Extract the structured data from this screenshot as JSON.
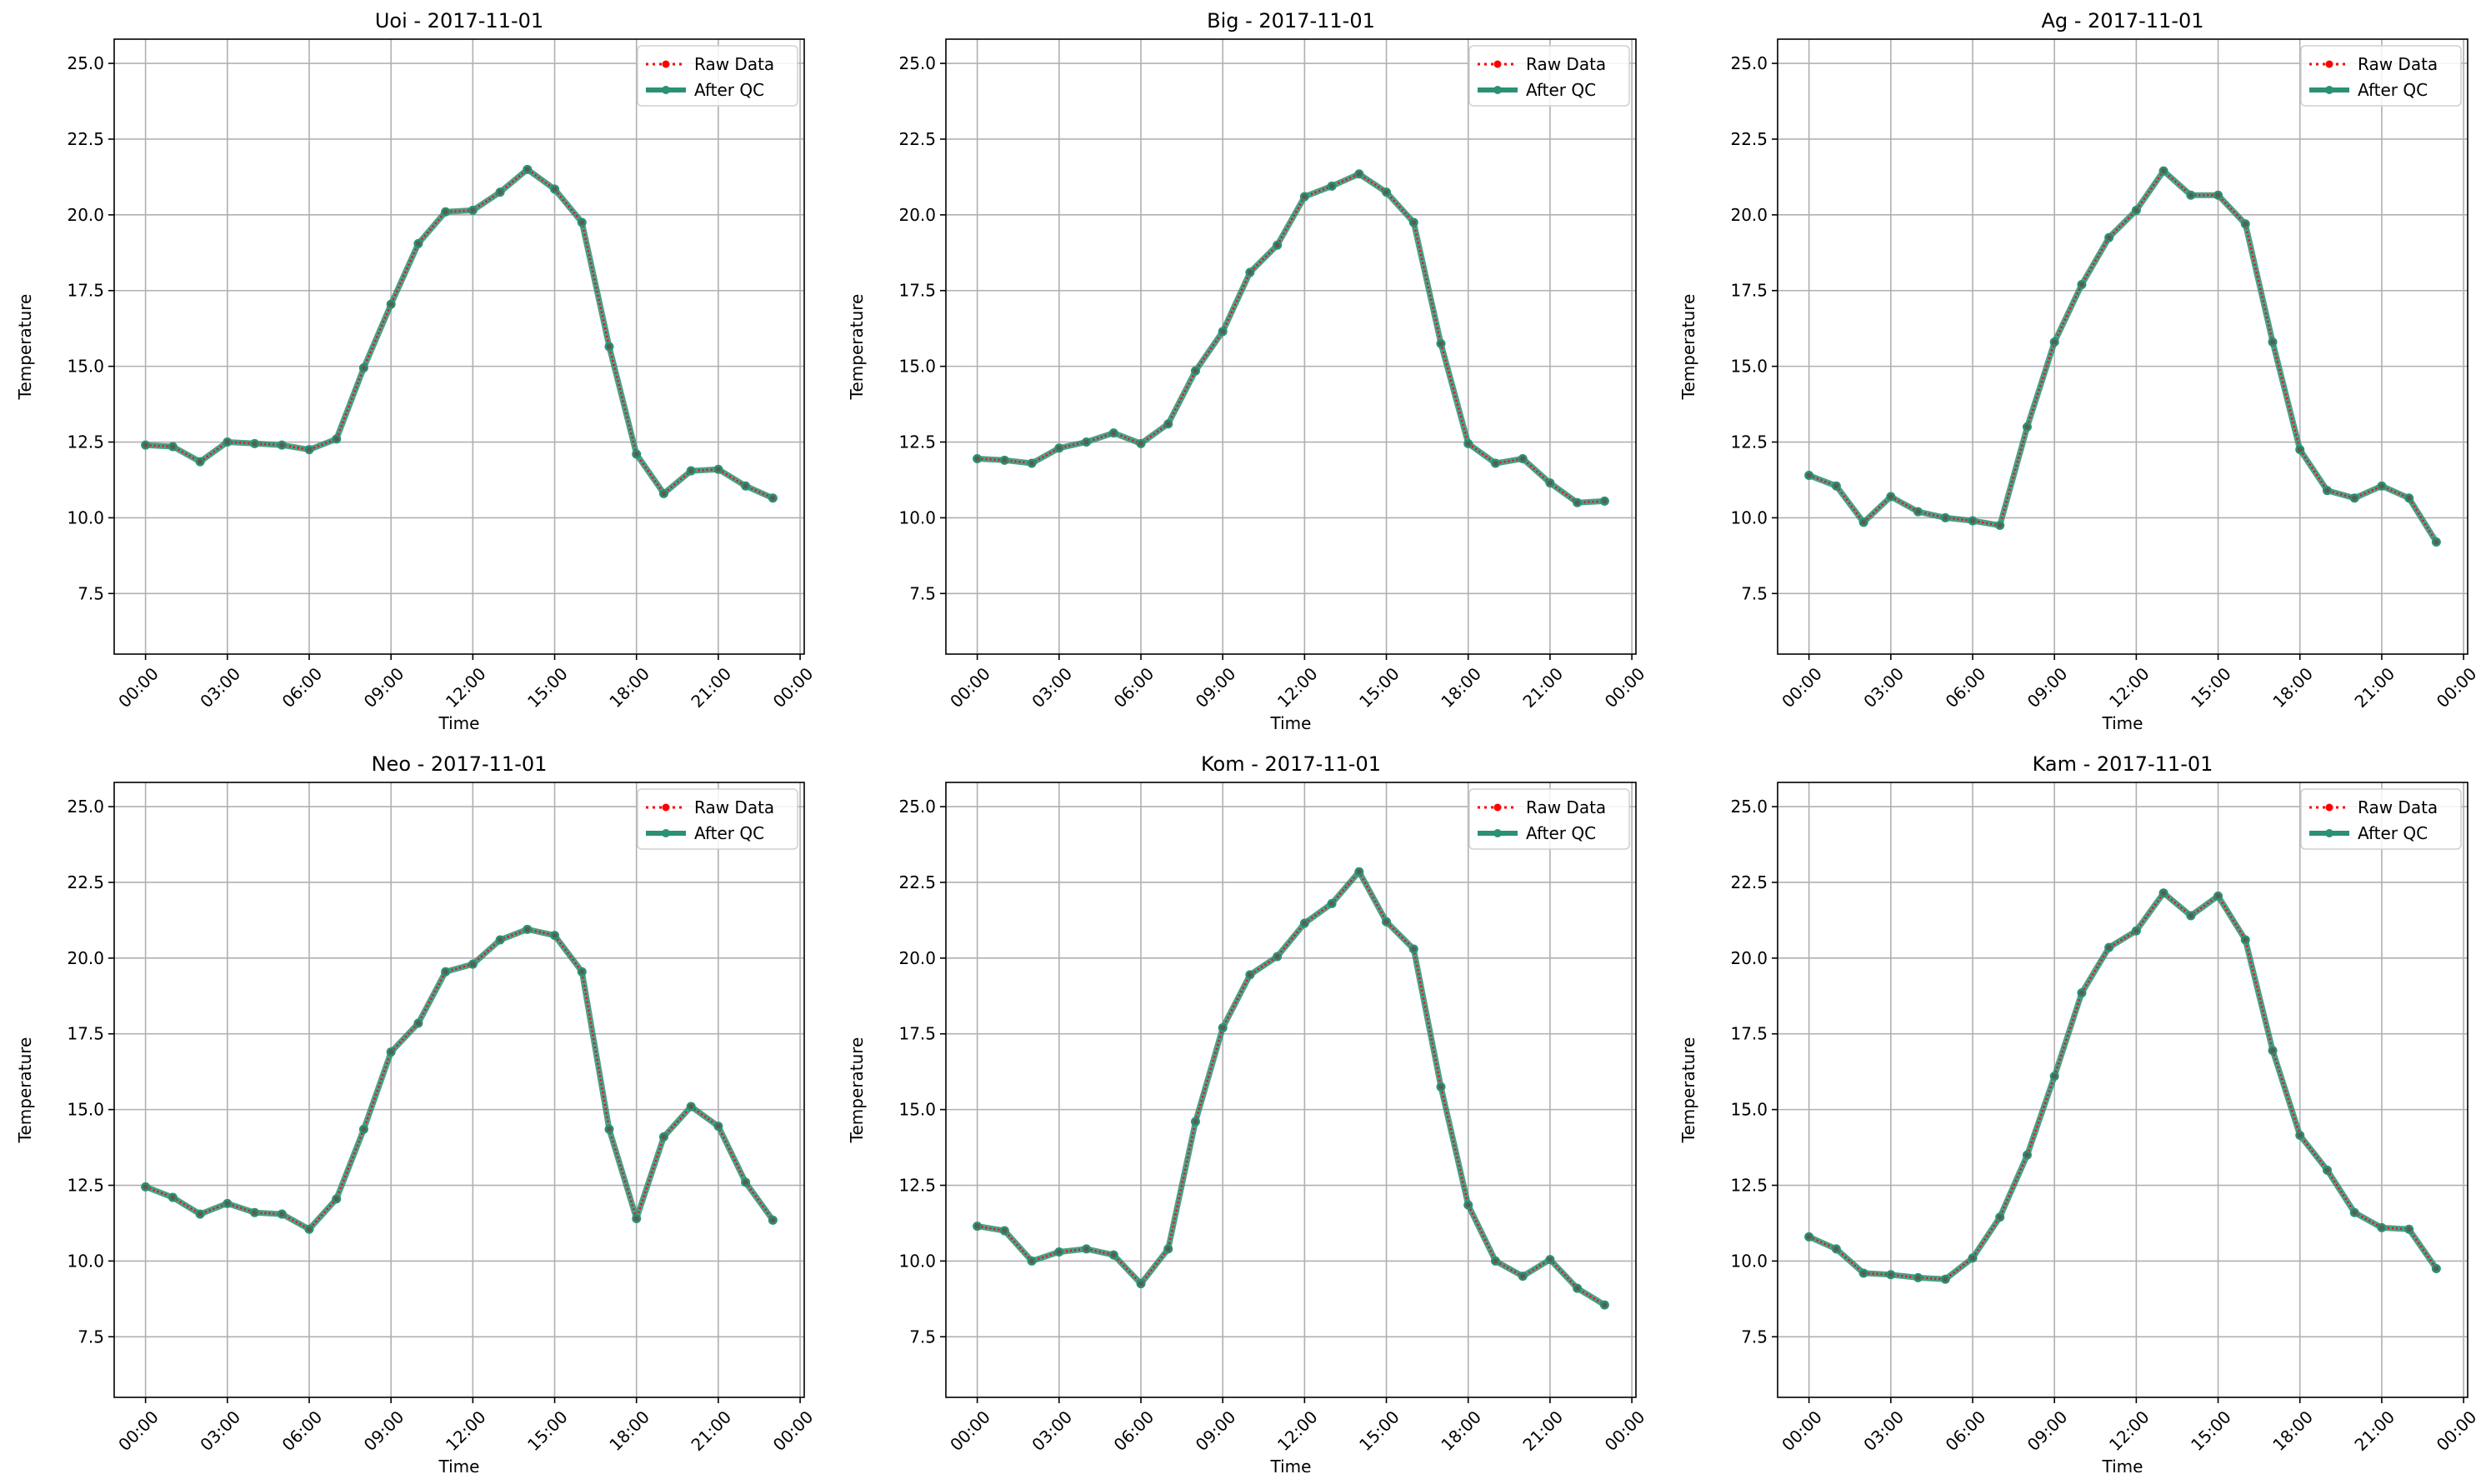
{
  "colors": {
    "raw": "#ff0000",
    "qc": "#2a9175",
    "grid": "#b0b0b0"
  },
  "legend": {
    "raw_label": "Raw Data",
    "qc_label": "After QC",
    "placement": "top-right"
  },
  "chart_data": [
    {
      "type": "line",
      "title": "Uoi - 2017-11-01",
      "xlabel": "Time",
      "ylabel": "Temperature",
      "xticks": [
        "00:00",
        "03:00",
        "06:00",
        "09:00",
        "12:00",
        "15:00",
        "18:00",
        "21:00",
        "00:00"
      ],
      "xlim_hours": [
        -1.15,
        24.15
      ],
      "ylim": [
        5.5,
        25.8
      ],
      "yticks": [
        7.5,
        10.0,
        12.5,
        15.0,
        17.5,
        20.0,
        22.5,
        25.0
      ],
      "grid": true,
      "series": [
        {
          "name": "Raw Data",
          "values": [
            12.4,
            12.35,
            11.85,
            12.5,
            12.45,
            12.4,
            12.25,
            12.6,
            14.95,
            17.05,
            19.05,
            20.1,
            20.15,
            20.75,
            21.5,
            20.85,
            19.75,
            15.65,
            12.1,
            10.8,
            11.55,
            11.6,
            11.05,
            10.65
          ]
        },
        {
          "name": "After QC",
          "values": [
            12.4,
            12.35,
            11.85,
            12.5,
            12.45,
            12.4,
            12.25,
            12.6,
            14.95,
            17.05,
            19.05,
            20.1,
            20.15,
            20.75,
            21.5,
            20.85,
            19.75,
            15.65,
            12.1,
            10.8,
            11.55,
            11.6,
            11.05,
            10.65
          ]
        }
      ]
    },
    {
      "type": "line",
      "title": "Big - 2017-11-01",
      "xlabel": "Time",
      "ylabel": "Temperature",
      "xticks": [
        "00:00",
        "03:00",
        "06:00",
        "09:00",
        "12:00",
        "15:00",
        "18:00",
        "21:00",
        "00:00"
      ],
      "xlim_hours": [
        -1.15,
        24.15
      ],
      "ylim": [
        5.5,
        25.8
      ],
      "yticks": [
        7.5,
        10.0,
        12.5,
        15.0,
        17.5,
        20.0,
        22.5,
        25.0
      ],
      "grid": true,
      "series": [
        {
          "name": "Raw Data",
          "values": [
            11.95,
            11.9,
            11.8,
            12.3,
            12.5,
            12.8,
            12.45,
            13.1,
            14.85,
            16.15,
            18.1,
            19.0,
            20.6,
            20.95,
            21.35,
            20.75,
            19.75,
            15.75,
            12.45,
            11.8,
            11.95,
            11.15,
            10.5,
            10.55
          ]
        },
        {
          "name": "After QC",
          "values": [
            11.95,
            11.9,
            11.8,
            12.3,
            12.5,
            12.8,
            12.45,
            13.1,
            14.85,
            16.15,
            18.1,
            19.0,
            20.6,
            20.95,
            21.35,
            20.75,
            19.75,
            15.75,
            12.45,
            11.8,
            11.95,
            11.15,
            10.5,
            10.55
          ]
        }
      ]
    },
    {
      "type": "line",
      "title": "Ag - 2017-11-01",
      "xlabel": "Time",
      "ylabel": "Temperature",
      "xticks": [
        "00:00",
        "03:00",
        "06:00",
        "09:00",
        "12:00",
        "15:00",
        "18:00",
        "21:00",
        "00:00"
      ],
      "xlim_hours": [
        -1.15,
        24.15
      ],
      "ylim": [
        5.5,
        25.8
      ],
      "yticks": [
        7.5,
        10.0,
        12.5,
        15.0,
        17.5,
        20.0,
        22.5,
        25.0
      ],
      "grid": true,
      "series": [
        {
          "name": "Raw Data",
          "values": [
            11.4,
            11.05,
            9.85,
            10.7,
            10.2,
            10.0,
            9.9,
            9.75,
            13.0,
            15.8,
            17.7,
            19.25,
            20.15,
            21.45,
            20.65,
            20.65,
            19.7,
            15.8,
            12.25,
            10.9,
            10.65,
            11.05,
            10.65,
            9.2
          ]
        },
        {
          "name": "After QC",
          "values": [
            11.4,
            11.05,
            9.85,
            10.7,
            10.2,
            10.0,
            9.9,
            9.75,
            13.0,
            15.8,
            17.7,
            19.25,
            20.15,
            21.45,
            20.65,
            20.65,
            19.7,
            15.8,
            12.25,
            10.9,
            10.65,
            11.05,
            10.65,
            9.2
          ]
        }
      ]
    },
    {
      "type": "line",
      "title": "Neo - 2017-11-01",
      "xlabel": "Time",
      "ylabel": "Temperature",
      "xticks": [
        "00:00",
        "03:00",
        "06:00",
        "09:00",
        "12:00",
        "15:00",
        "18:00",
        "21:00",
        "00:00"
      ],
      "xlim_hours": [
        -1.15,
        24.15
      ],
      "ylim": [
        5.5,
        25.8
      ],
      "yticks": [
        7.5,
        10.0,
        12.5,
        15.0,
        17.5,
        20.0,
        22.5,
        25.0
      ],
      "grid": true,
      "series": [
        {
          "name": "Raw Data",
          "values": [
            12.45,
            12.1,
            11.55,
            11.9,
            11.6,
            11.55,
            11.05,
            12.05,
            14.35,
            16.9,
            17.85,
            19.55,
            19.8,
            20.6,
            20.95,
            20.75,
            19.55,
            14.35,
            11.4,
            14.1,
            15.1,
            14.45,
            12.6,
            11.35
          ]
        },
        {
          "name": "After QC",
          "values": [
            12.45,
            12.1,
            11.55,
            11.9,
            11.6,
            11.55,
            11.05,
            12.05,
            14.35,
            16.9,
            17.85,
            19.55,
            19.8,
            20.6,
            20.95,
            20.75,
            19.55,
            14.35,
            11.4,
            14.1,
            15.1,
            14.45,
            12.6,
            11.35
          ]
        }
      ]
    },
    {
      "type": "line",
      "title": "Kom - 2017-11-01",
      "xlabel": "Time",
      "ylabel": "Temperature",
      "xticks": [
        "00:00",
        "03:00",
        "06:00",
        "09:00",
        "12:00",
        "15:00",
        "18:00",
        "21:00",
        "00:00"
      ],
      "xlim_hours": [
        -1.15,
        24.15
      ],
      "ylim": [
        5.5,
        25.8
      ],
      "yticks": [
        7.5,
        10.0,
        12.5,
        15.0,
        17.5,
        20.0,
        22.5,
        25.0
      ],
      "grid": true,
      "series": [
        {
          "name": "Raw Data",
          "values": [
            11.15,
            11.0,
            10.0,
            10.3,
            10.4,
            10.2,
            9.25,
            10.4,
            14.6,
            17.7,
            19.45,
            20.05,
            21.15,
            21.8,
            22.85,
            21.2,
            20.3,
            15.75,
            11.85,
            10.0,
            9.5,
            10.05,
            9.1,
            8.55
          ]
        },
        {
          "name": "After QC",
          "values": [
            11.15,
            11.0,
            10.0,
            10.3,
            10.4,
            10.2,
            9.25,
            10.4,
            14.6,
            17.7,
            19.45,
            20.05,
            21.15,
            21.8,
            22.85,
            21.2,
            20.3,
            15.75,
            11.85,
            10.0,
            9.5,
            10.05,
            9.1,
            8.55
          ]
        }
      ]
    },
    {
      "type": "line",
      "title": "Kam - 2017-11-01",
      "xlabel": "Time",
      "ylabel": "Temperature",
      "xticks": [
        "00:00",
        "03:00",
        "06:00",
        "09:00",
        "12:00",
        "15:00",
        "18:00",
        "21:00",
        "00:00"
      ],
      "xlim_hours": [
        -1.15,
        24.15
      ],
      "ylim": [
        5.5,
        25.8
      ],
      "yticks": [
        7.5,
        10.0,
        12.5,
        15.0,
        17.5,
        20.0,
        22.5,
        25.0
      ],
      "grid": true,
      "series": [
        {
          "name": "Raw Data",
          "values": [
            10.8,
            10.4,
            9.6,
            9.55,
            9.45,
            9.4,
            10.1,
            11.45,
            13.5,
            16.1,
            18.85,
            20.35,
            20.9,
            22.15,
            21.4,
            22.05,
            20.6,
            16.95,
            14.15,
            13.0,
            11.6,
            11.1,
            11.05,
            9.75
          ]
        },
        {
          "name": "After QC",
          "values": [
            10.8,
            10.4,
            9.6,
            9.55,
            9.45,
            9.4,
            10.1,
            11.45,
            13.5,
            16.1,
            18.85,
            20.35,
            20.9,
            22.15,
            21.4,
            22.05,
            20.6,
            16.95,
            14.15,
            13.0,
            11.6,
            11.1,
            11.05,
            9.75
          ]
        }
      ]
    }
  ]
}
